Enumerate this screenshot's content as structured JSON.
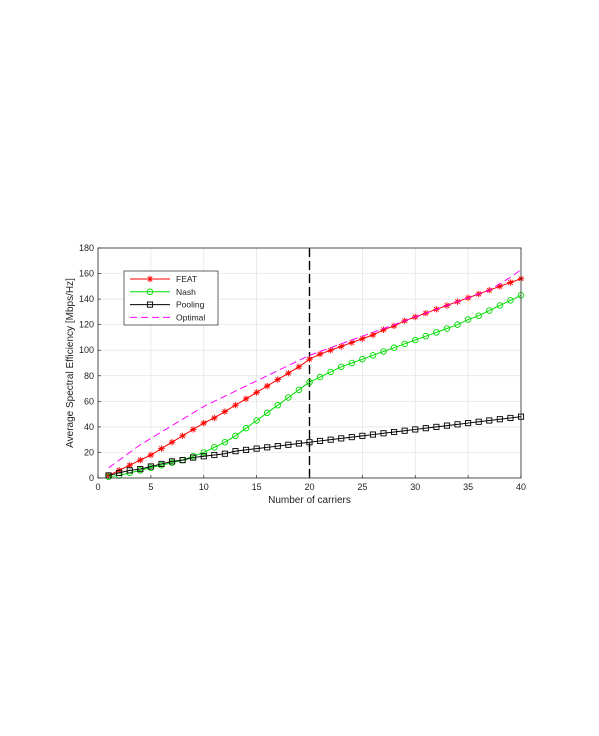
{
  "chart_data": {
    "type": "line",
    "xlabel": "Number of carriers",
    "ylabel": "Average Spectral Efficiency [Mbps/Hz]",
    "xlim": [
      0,
      40
    ],
    "ylim": [
      0,
      180
    ],
    "xticks": [
      0,
      5,
      10,
      15,
      20,
      25,
      30,
      35,
      40
    ],
    "yticks": [
      0,
      20,
      40,
      60,
      80,
      100,
      120,
      140,
      160,
      180
    ],
    "grid": true,
    "legend_position": "top-left",
    "vertical_reference_line": {
      "x": 20,
      "style": "dashed",
      "color": "#000000"
    },
    "series": [
      {
        "name": "FEAT",
        "color": "#ff0000",
        "marker": "asterisk",
        "line_style": "solid",
        "x": [
          1,
          2,
          3,
          4,
          5,
          6,
          7,
          8,
          9,
          10,
          11,
          12,
          13,
          14,
          15,
          16,
          17,
          18,
          19,
          20,
          21,
          22,
          23,
          24,
          25,
          26,
          27,
          28,
          29,
          30,
          31,
          32,
          33,
          34,
          35,
          36,
          37,
          38,
          39,
          40
        ],
        "y": [
          2,
          6,
          10,
          14,
          18,
          23,
          28,
          33,
          38,
          43,
          47,
          52,
          57,
          62,
          67,
          72,
          77,
          82,
          87,
          93,
          97,
          100,
          103,
          106,
          109,
          112,
          116,
          119,
          123,
          126,
          129,
          132,
          135,
          138,
          141,
          144,
          147,
          150,
          153,
          156
        ]
      },
      {
        "name": "Nash",
        "color": "#00dd00",
        "marker": "circle",
        "line_style": "solid",
        "x": [
          1,
          2,
          3,
          4,
          5,
          6,
          7,
          8,
          9,
          10,
          11,
          12,
          13,
          14,
          15,
          16,
          17,
          18,
          19,
          20,
          21,
          22,
          23,
          24,
          25,
          26,
          27,
          28,
          29,
          30,
          31,
          32,
          33,
          34,
          35,
          36,
          37,
          38,
          39,
          40
        ],
        "y": [
          1,
          2,
          4,
          6,
          8,
          10,
          12,
          14,
          17,
          20,
          24,
          28,
          33,
          39,
          45,
          51,
          57,
          63,
          69,
          75,
          79,
          83,
          87,
          90,
          93,
          96,
          99,
          102,
          105,
          108,
          111,
          114,
          117,
          120,
          124,
          127,
          131,
          135,
          139,
          143
        ]
      },
      {
        "name": "Pooling",
        "color": "#000000",
        "marker": "square",
        "line_style": "solid",
        "x": [
          1,
          2,
          3,
          4,
          5,
          6,
          7,
          8,
          9,
          10,
          11,
          12,
          13,
          14,
          15,
          16,
          17,
          18,
          19,
          20,
          21,
          22,
          23,
          24,
          25,
          26,
          27,
          28,
          29,
          30,
          31,
          32,
          33,
          34,
          35,
          36,
          37,
          38,
          39,
          40
        ],
        "y": [
          2,
          4,
          6,
          7,
          9,
          11,
          13,
          14,
          16,
          17,
          18,
          19,
          21,
          22,
          23,
          24,
          25,
          26,
          27,
          28,
          29,
          30,
          31,
          32,
          33,
          34,
          35,
          36,
          37,
          38,
          39,
          40,
          41,
          42,
          43,
          44,
          45,
          46,
          47,
          48
        ]
      },
      {
        "name": "Optimal",
        "color": "#ff00ff",
        "marker": "none",
        "line_style": "dashed",
        "x": [
          1,
          2,
          3,
          4,
          5,
          6,
          7,
          8,
          9,
          10,
          11,
          12,
          13,
          14,
          15,
          16,
          17,
          18,
          19,
          20,
          21,
          22,
          23,
          24,
          25,
          26,
          27,
          28,
          29,
          30,
          31,
          32,
          33,
          34,
          35,
          36,
          37,
          38,
          39,
          40
        ],
        "y": [
          8,
          14,
          20,
          26,
          31,
          36,
          41,
          46,
          51,
          56,
          60,
          64,
          68,
          72,
          76,
          80,
          84,
          88,
          92,
          96,
          99,
          102,
          105,
          108,
          111,
          114,
          117,
          120,
          123,
          126,
          129,
          132,
          135,
          138,
          141,
          144,
          147,
          152,
          157,
          163
        ]
      }
    ]
  }
}
